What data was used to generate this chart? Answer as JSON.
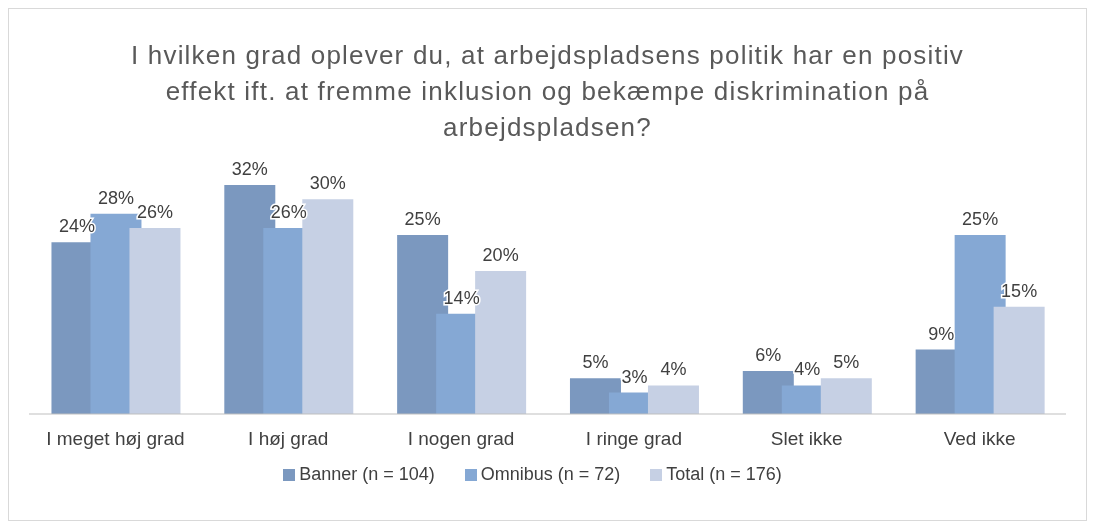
{
  "chart_data": {
    "type": "bar",
    "title": "I hvilken grad oplever du, at arbejdspladsens politik har en positiv effekt ift. at fremme inklusion og bekæmpe diskrimination på arbejdspladsen?",
    "categories": [
      "I meget høj grad",
      "I høj grad",
      "I nogen grad",
      "I ringe grad",
      "Slet ikke",
      "Ved ikke"
    ],
    "series": [
      {
        "name": "Banner (n = 104)",
        "color": "#7b98bf",
        "values": [
          24,
          32,
          25,
          5,
          6,
          9
        ],
        "value_labels": [
          "24%",
          "32%",
          "25%",
          "5%",
          "6%",
          "9%"
        ]
      },
      {
        "name": "Omnibus (n = 72)",
        "color": "#85a8d4",
        "values": [
          28,
          26,
          14,
          3,
          4,
          25
        ],
        "value_labels": [
          "28%",
          "26%",
          "14%",
          "3%",
          "4%",
          "25%"
        ]
      },
      {
        "name": "Total (n = 176)",
        "color": "#c6d0e4",
        "values": [
          26,
          30,
          20,
          4,
          5,
          15
        ],
        "value_labels": [
          "26%",
          "30%",
          "20%",
          "4%",
          "5%",
          "15%"
        ]
      }
    ],
    "tick_labels": "x",
    "legend": "bottom"
  }
}
